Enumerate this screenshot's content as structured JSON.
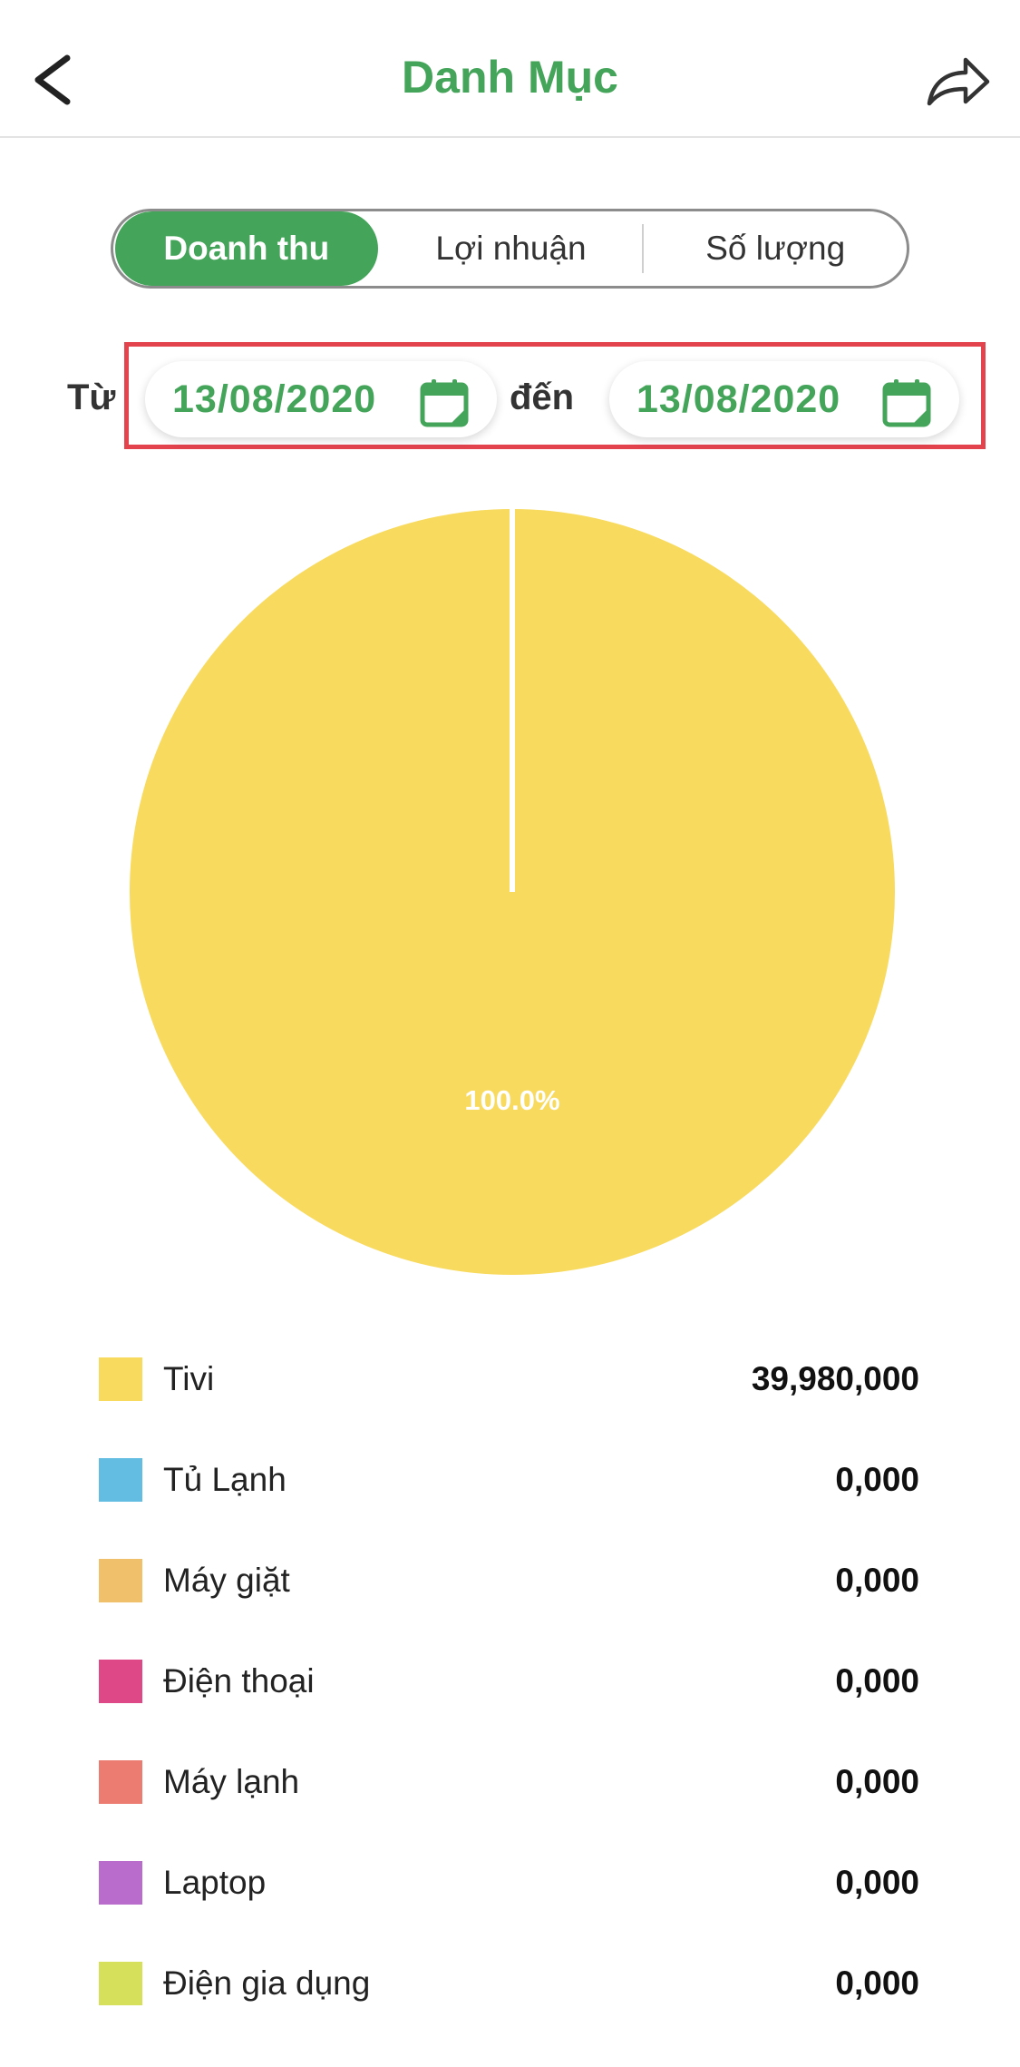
{
  "header": {
    "title": "Danh Mục",
    "back_icon": "chevron-left-icon",
    "share_icon": "share-arrow-icon",
    "accent": "#44a55a"
  },
  "tabs": [
    {
      "label": "Doanh thu",
      "active": true
    },
    {
      "label": "Lợi nhuận",
      "active": false
    },
    {
      "label": "Số lượng",
      "active": false
    }
  ],
  "date_range": {
    "from_label": "Từ",
    "from_value": "13/08/2020",
    "to_label": "đến",
    "to_value": "13/08/2020",
    "calendar_icon": "calendar-icon",
    "highlight_color": "#e2434d"
  },
  "chart_data": {
    "type": "pie",
    "slices": [
      {
        "name": "Tivi",
        "value": 100.0,
        "label": "100.0%",
        "color": "#f8da5e"
      }
    ]
  },
  "legend": [
    {
      "name": "Tivi",
      "value": "39,980,000",
      "color": "#f8da5e"
    },
    {
      "name": "Tủ Lạnh",
      "value": "0,000",
      "color": "#63bde2"
    },
    {
      "name": "Máy giặt",
      "value": "0,000",
      "color": "#f0c06a"
    },
    {
      "name": "Điện thoại",
      "value": "0,000",
      "color": "#de4886"
    },
    {
      "name": "Máy lạnh",
      "value": "0,000",
      "color": "#ec7b72"
    },
    {
      "name": "Laptop",
      "value": "0,000",
      "color": "#b96ccb"
    },
    {
      "name": "Điện gia dụng",
      "value": "0,000",
      "color": "#d7e05a"
    }
  ]
}
